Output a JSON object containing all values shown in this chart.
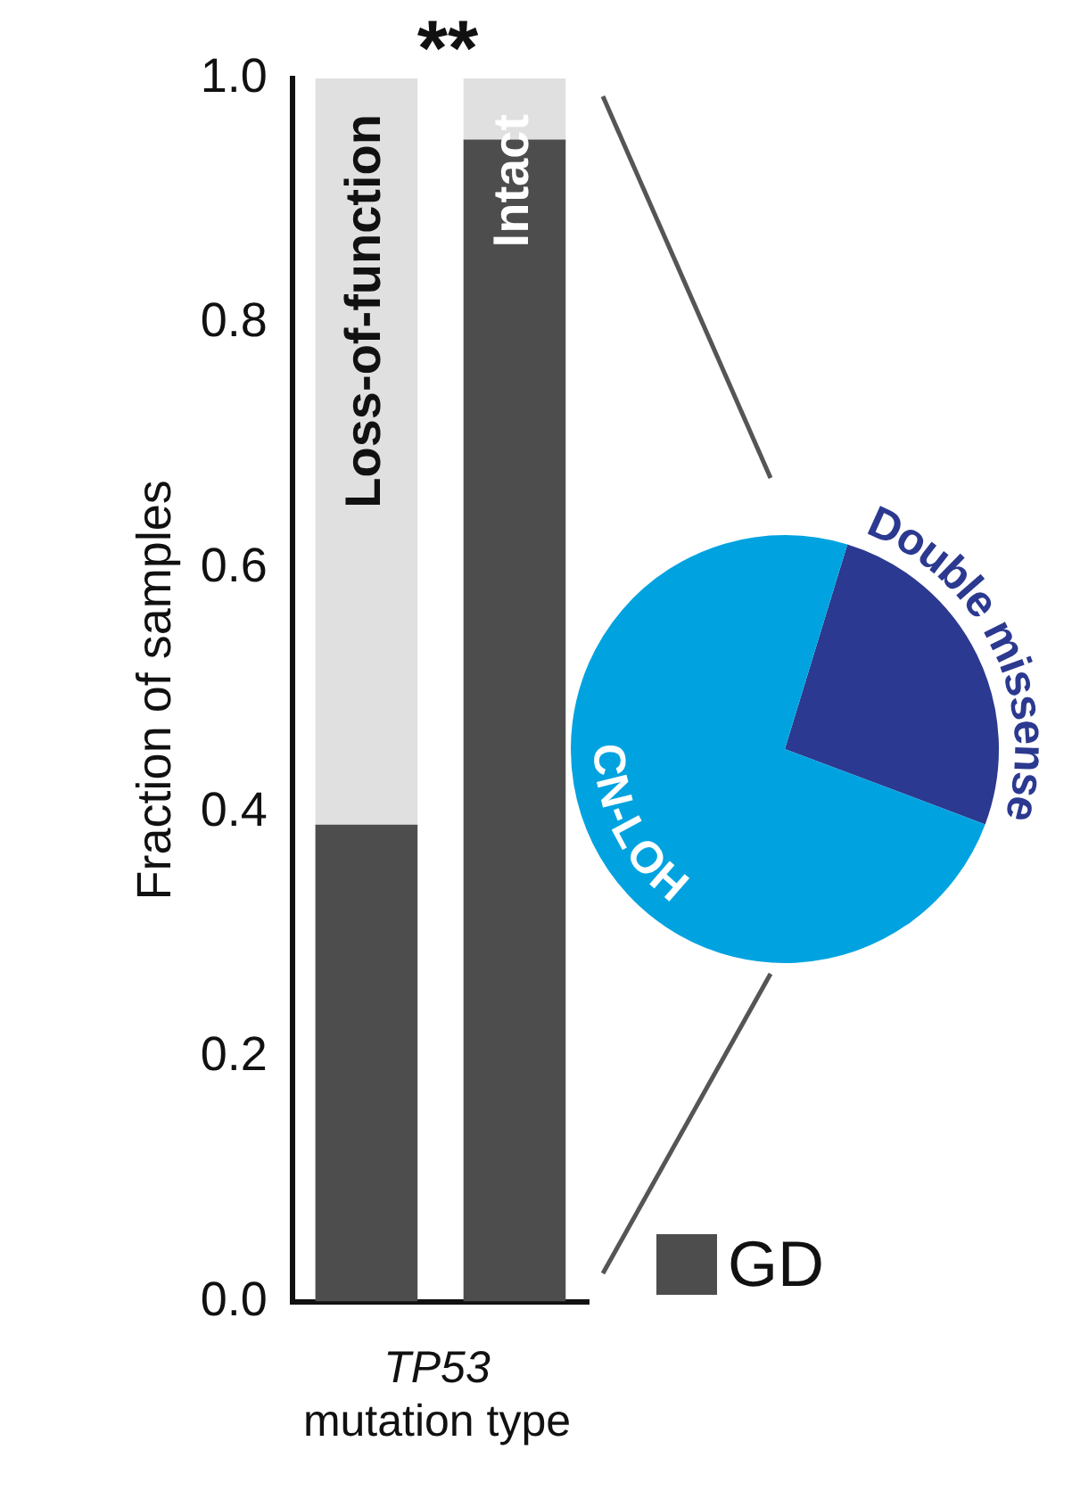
{
  "chart_data": [
    {
      "type": "bar",
      "stacked": true,
      "categories": [
        "Loss-of-function",
        "Intact"
      ],
      "series": [
        {
          "name": "GD",
          "color": "#4d4d4d",
          "values": [
            0.39,
            0.95
          ]
        },
        {
          "color": "#e0e0e0",
          "values": [
            0.61,
            0.05
          ]
        }
      ],
      "ylim": [
        0,
        1
      ],
      "yticks": [
        {
          "value": 0,
          "label": "0.0"
        },
        0.2,
        0.4,
        0.6,
        0.8,
        {
          "value": 1,
          "label": "1.0"
        }
      ],
      "ylabel": "Fraction of samples",
      "xlabel": "TP53 mutation type",
      "annotations": [
        "**"
      ],
      "legend": "bottom right",
      "grid": false
    },
    {
      "type": "pie",
      "categories": [
        "Double missense",
        "CN-LOH"
      ],
      "values": [
        26,
        74
      ],
      "colors": [
        "#2b3990",
        "#00a3e0"
      ]
    }
  ]
}
